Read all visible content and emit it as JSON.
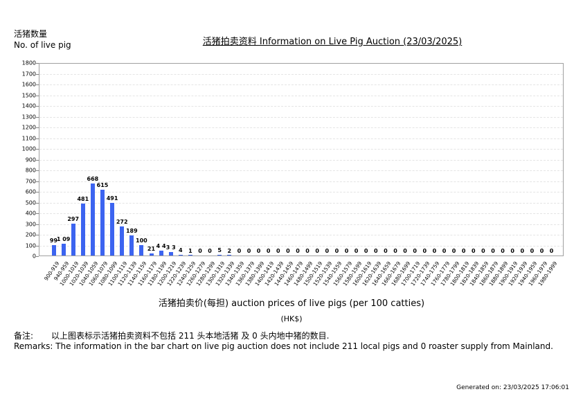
{
  "header": {
    "ylabel_cn": "活猪数量",
    "ylabel_en": "No. of live pig",
    "title": "活猪拍卖资料 Information on Live Pig Auction (23/03/2025)"
  },
  "xaxis": {
    "title": "活猪拍卖价(每担) auction prices of live pigs (per 100 catties)",
    "unit": "(HK$)"
  },
  "remarks": {
    "cn_label": "备注:",
    "cn_text": "以上图表标示活猪拍卖资料不包括 211 头本地活猪 及 0 头内地中猪的数目.",
    "en_text": "Remarks: The information in the bar chart on live pig auction does not include 211 local pigs and 0 roaster supply from Mainland."
  },
  "footer": {
    "generated": "Generated on: 23/03/2025 17:06:01"
  },
  "colors": {
    "bar": "#3c64f0",
    "grid": "#e4e4e4",
    "axis": "#808080"
  },
  "chart_data": {
    "type": "bar",
    "title": "活猪拍卖资料 Information on Live Pig Auction (23/03/2025)",
    "xlabel": "活猪拍卖价(每担) auction prices of live pigs (per 100 catties) (HK$)",
    "ylabel": "活猪数量 No. of live pig",
    "ylim": [
      0,
      1800
    ],
    "yticks": [
      0,
      100,
      200,
      300,
      400,
      500,
      600,
      700,
      800,
      900,
      1000,
      1100,
      1200,
      1300,
      1400,
      1500,
      1600,
      1700,
      1800
    ],
    "grid": true,
    "legend": null,
    "categories": [
      "900-919",
      "940-959",
      "1000-1019",
      "1020-1039",
      "1040-1059",
      "1060-1079",
      "1080-1099",
      "1100-1119",
      "1120-1139",
      "1140-1159",
      "1160-1179",
      "1180-1199",
      "1200-1219",
      "1220-1239",
      "1240-1259",
      "1260-1279",
      "1280-1299",
      "1300-1319",
      "1320-1339",
      "1340-1359",
      "1360-1379",
      "1380-1399",
      "1400-1419",
      "1420-1439",
      "1440-1459",
      "1460-1479",
      "1480-1499",
      "1500-1519",
      "1520-1539",
      "1540-1559",
      "1560-1579",
      "1580-1599",
      "1600-1619",
      "1620-1639",
      "1640-1659",
      "1660-1679",
      "1680-1699",
      "1700-1719",
      "1720-1739",
      "1740-1759",
      "1760-1779",
      "1780-1799",
      "1800-1819",
      "1820-1839",
      "1840-1859",
      "1860-1879",
      "1880-1899",
      "1900-1919",
      "1920-1939",
      "1940-1959",
      "1960-1979",
      "1980-1999"
    ],
    "values": [
      99,
      109,
      297,
      481,
      668,
      615,
      491,
      272,
      189,
      100,
      21,
      44,
      33,
      4,
      1,
      0,
      0,
      5,
      2,
      0,
      0,
      0,
      0,
      0,
      0,
      0,
      0,
      0,
      0,
      0,
      0,
      0,
      0,
      0,
      0,
      0,
      0,
      0,
      0,
      0,
      0,
      0,
      0,
      0,
      0,
      0,
      0,
      0,
      0,
      0,
      0,
      0
    ],
    "labels": [
      "99",
      "1 09",
      "297",
      "481",
      "668",
      "615",
      "491",
      "272",
      "189",
      "100",
      "21",
      "4 4",
      "3 3",
      "4",
      "1",
      "0",
      "0",
      "5",
      "2",
      "0",
      "0",
      "0",
      "0",
      "0",
      "0",
      "0",
      "0",
      "0",
      "0",
      "0",
      "0",
      "0",
      "0",
      "0",
      "0",
      "0",
      "0",
      "0",
      "0",
      "0",
      "0",
      "0",
      "0",
      "0",
      "0",
      "0",
      "0",
      "0",
      "0",
      "0",
      "0",
      "0"
    ]
  }
}
